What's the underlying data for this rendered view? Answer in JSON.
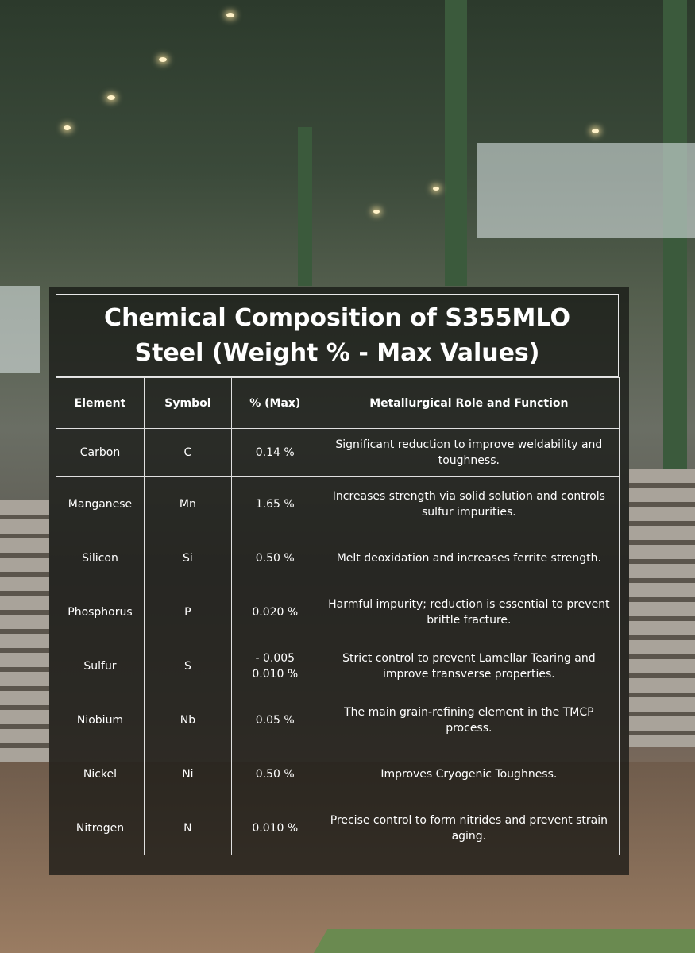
{
  "title_line1": "Chemical Composition of S355MLO",
  "title_line2": "Steel (Weight % - Max Values)",
  "table": {
    "headers": [
      "Element",
      "Symbol",
      "% (Max)",
      "Metallurgical Role and Function"
    ],
    "rows": [
      {
        "element": "Carbon",
        "symbol": "C",
        "max": "0.14 %",
        "role": "Significant reduction to improve weldability and toughness."
      },
      {
        "element": "Manganese",
        "symbol": "Mn",
        "max": "1.65 %",
        "role": "Increases strength via solid solution and controls sulfur impurities."
      },
      {
        "element": "Silicon",
        "symbol": "Si",
        "max": "0.50 %",
        "role": "Melt deoxidation and increases ferrite strength."
      },
      {
        "element": "Phosphorus",
        "symbol": "P",
        "max": "0.020 %",
        "role": "Harmful impurity; reduction is essential to prevent brittle fracture."
      },
      {
        "element": "Sulfur",
        "symbol": "S",
        "max": "- 0.005 0.010 %",
        "role": "Strict control to prevent Lamellar Tearing and improve transverse properties."
      },
      {
        "element": "Niobium",
        "symbol": "Nb",
        "max": "0.05 %",
        "role": "The main grain-refining element in the TMCP process."
      },
      {
        "element": "Nickel",
        "symbol": "Ni",
        "max": "0.50 %",
        "role": "Improves Cryogenic Toughness."
      },
      {
        "element": "Nitrogen",
        "symbol": "N",
        "max": "0.010 %",
        "role": "Precise control to form nitrides and prevent strain aging."
      }
    ]
  }
}
